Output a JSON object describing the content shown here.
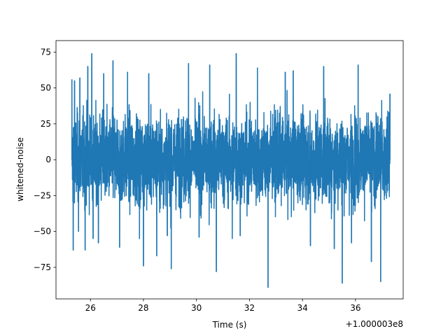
{
  "chart_data": {
    "type": "line",
    "title": "",
    "xlabel": "Time (s)",
    "ylabel": "whitened-noise",
    "offset_text": "+1.000003e8",
    "xlim": [
      24.7,
      37.8
    ],
    "ylim": [
      -97,
      83
    ],
    "x_ticks": [
      26,
      28,
      30,
      32,
      34,
      36
    ],
    "x_tick_labels": [
      "26",
      "28",
      "30",
      "32",
      "34",
      "36"
    ],
    "y_ticks": [
      -75,
      -50,
      -25,
      0,
      25,
      50,
      75
    ],
    "y_tick_labels": [
      "−75",
      "−50",
      "−25",
      "0",
      "25",
      "50",
      "75"
    ],
    "grid": false,
    "series": [
      {
        "color": "#1f77b4",
        "x_range": [
          25.3,
          37.3
        ],
        "typical_band": [
          -45,
          45
        ],
        "x": [
          25.3,
          25.35,
          25.4,
          25.55,
          25.6,
          25.8,
          25.9,
          26.05,
          26.1,
          26.3,
          26.5,
          26.85,
          27.1,
          27.4,
          27.85,
          28.0,
          28.2,
          28.5,
          28.9,
          29.05,
          29.7,
          30.1,
          30.5,
          30.75,
          31.35,
          31.5,
          31.65,
          32.3,
          32.7,
          33.35,
          33.65,
          34.3,
          34.8,
          35.2,
          35.5,
          35.85,
          36.1,
          36.6,
          36.95,
          37.3
        ],
        "y": [
          56,
          -63,
          55,
          -50,
          57,
          -63,
          65,
          74,
          -55,
          -58,
          60,
          69,
          -61,
          61,
          -55,
          -74,
          60,
          -67,
          -53,
          -76,
          67,
          -54,
          66,
          -78,
          -55,
          74,
          -53,
          64,
          -89,
          61,
          62,
          -60,
          65,
          -62,
          -86,
          -58,
          66,
          -71,
          -85,
          46
        ]
      }
    ]
  }
}
